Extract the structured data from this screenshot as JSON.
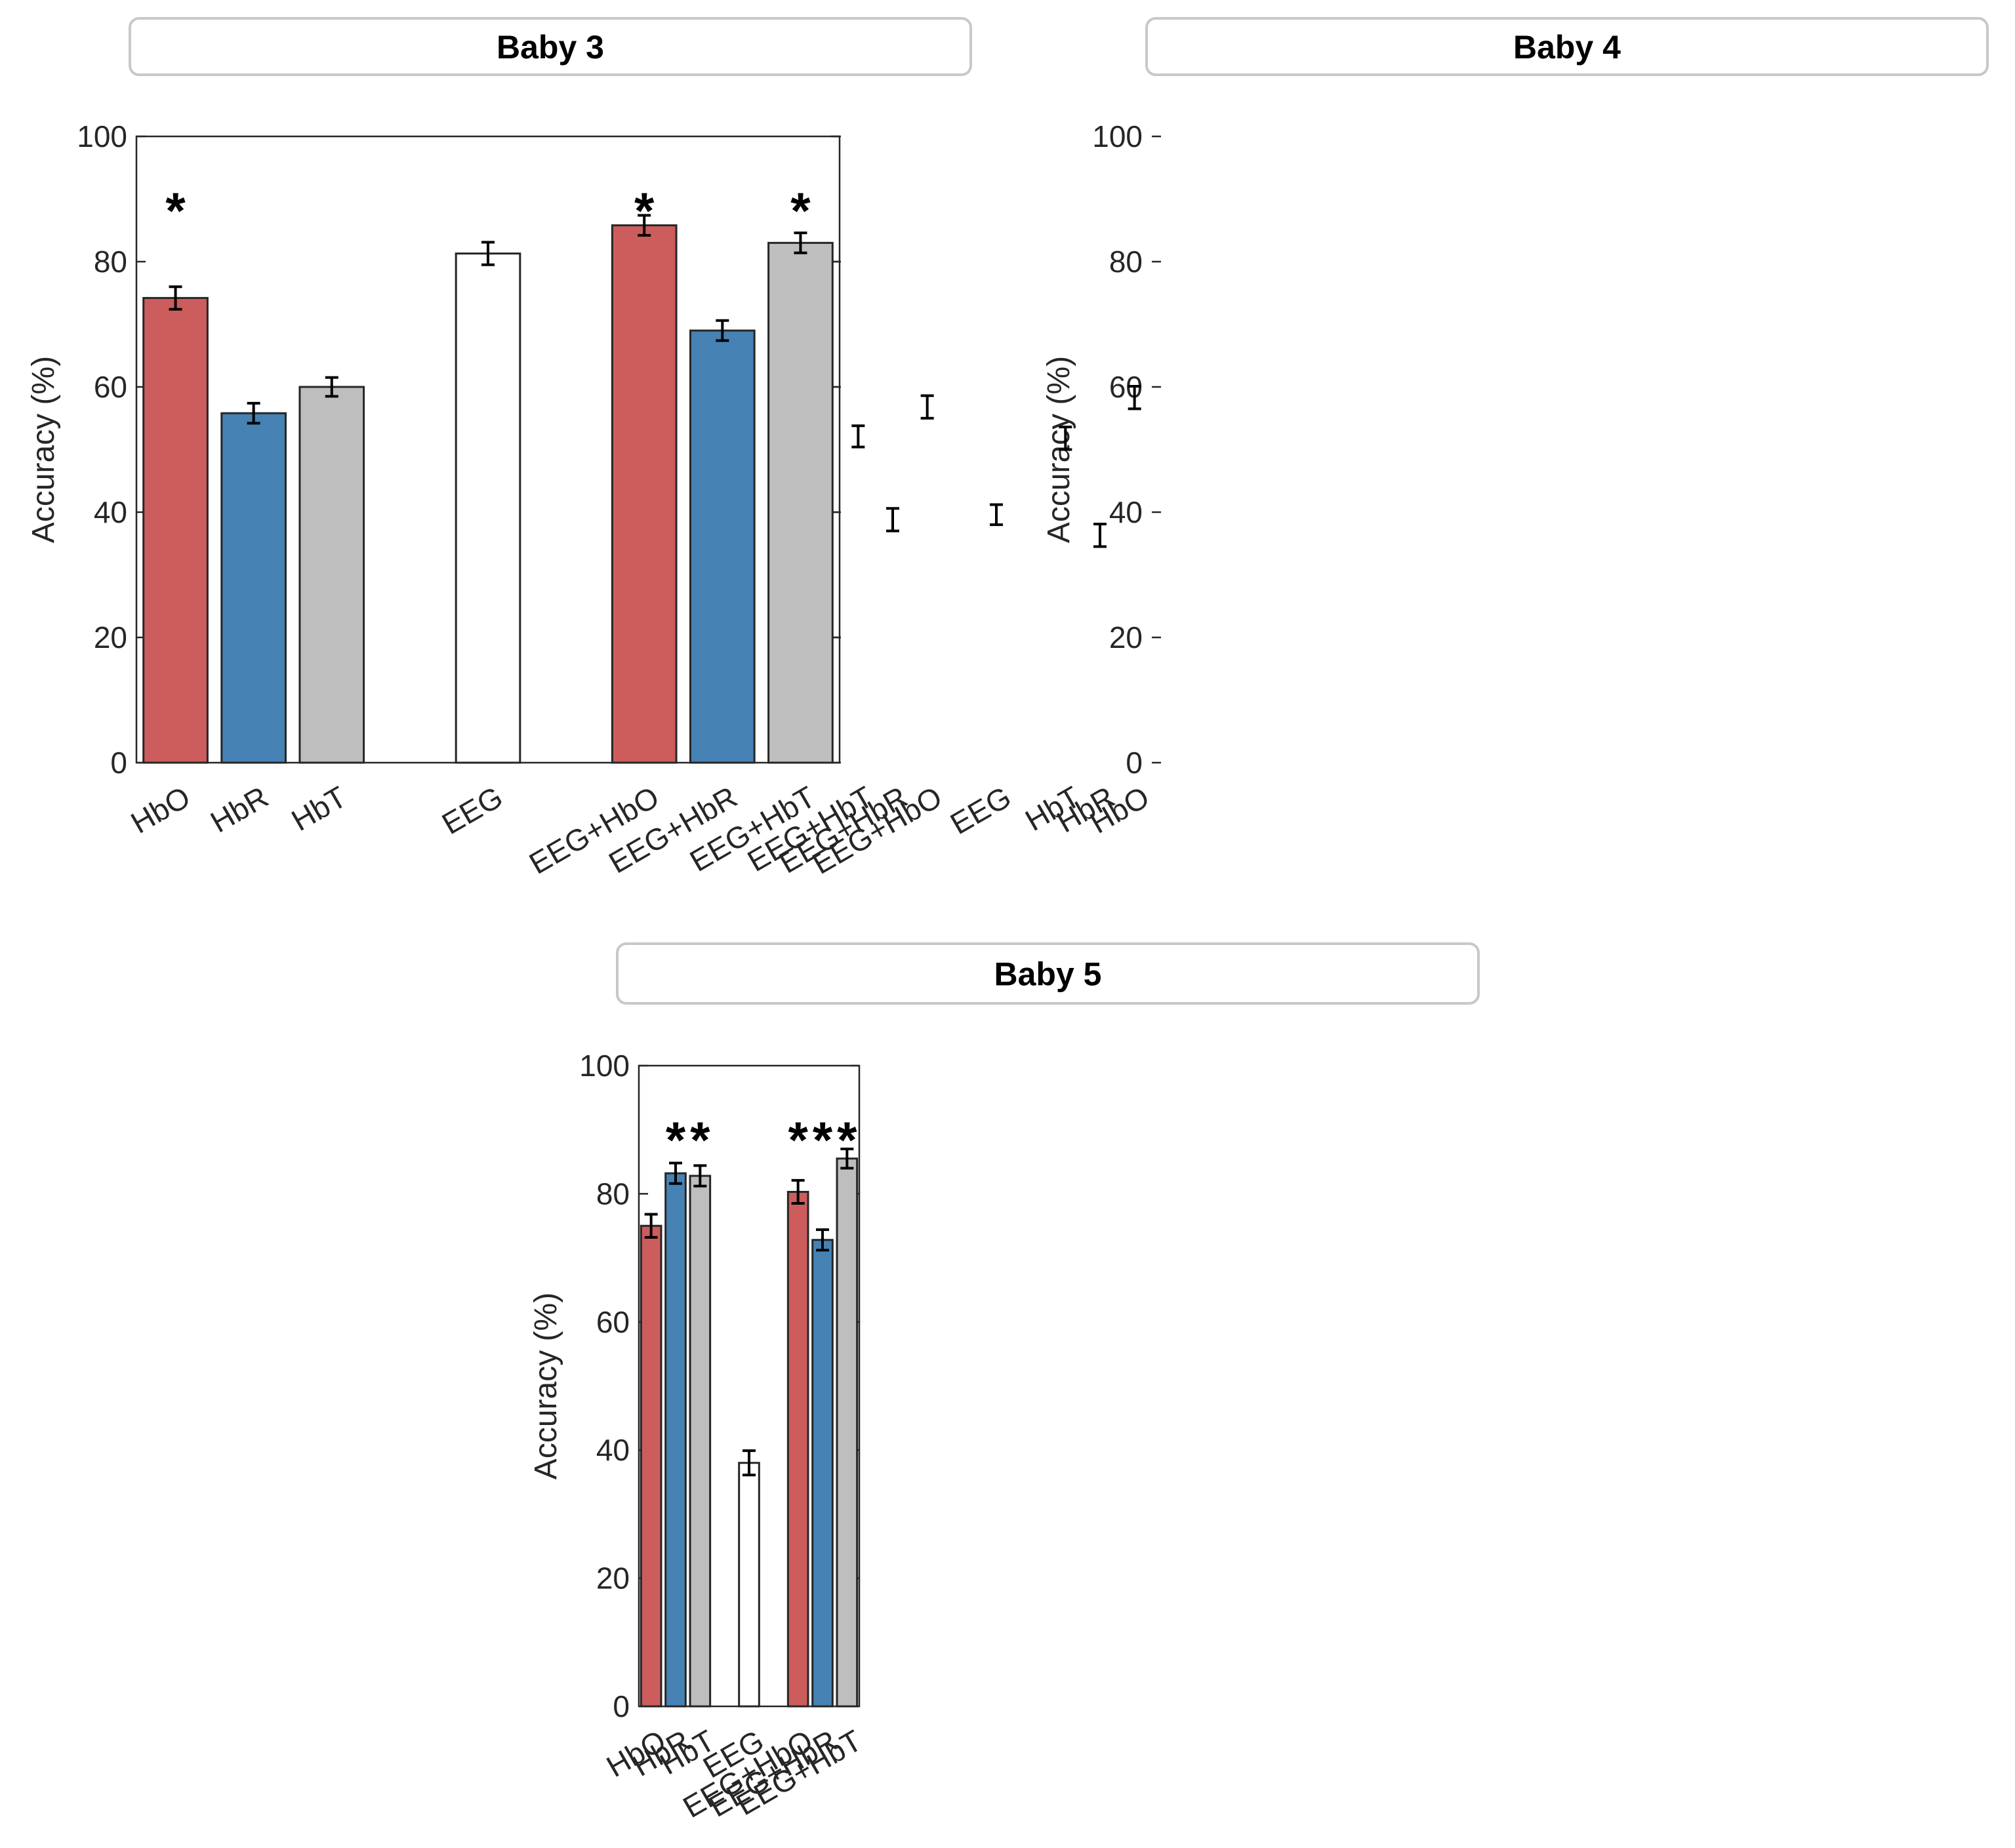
{
  "colors": {
    "HbO": "#cd5c5c",
    "HbR": "#4682b4",
    "HbT": "#bebebe",
    "EEG": "#ffffff",
    "bar_edge": "#262626",
    "axis": "#262626",
    "title_box_border": "#c8c8c8"
  },
  "chart_data": [
    {
      "type": "bar",
      "title": "Baby 3",
      "ylabel": "Accuracy (%)",
      "xlabel": "",
      "ylim": [
        0,
        100
      ],
      "yticks": [
        "0",
        "20",
        "40",
        "60",
        "80",
        "100"
      ],
      "grid": false,
      "categories": [
        "HbO",
        "HbR",
        "HbT",
        "EEG",
        "EEG+HbO",
        "EEG+HbR",
        "EEG+HbT"
      ],
      "bar_colors": [
        "HbO",
        "HbR",
        "HbT",
        "EEG",
        "HbO",
        "HbR",
        "HbT"
      ],
      "values": [
        74.2,
        55.8,
        60.0,
        81.3,
        85.8,
        69.0,
        83.0
      ],
      "errors": [
        1.8,
        1.6,
        1.5,
        1.8,
        1.6,
        1.6,
        1.6
      ],
      "significant": [
        true,
        false,
        false,
        false,
        true,
        false,
        true
      ],
      "marker": "*"
    },
    {
      "type": "bar",
      "title": "Baby 4",
      "ylabel": "Accuracy (%)",
      "xlabel": "",
      "ylim": [
        0,
        100
      ],
      "yticks": [
        "0",
        "20",
        "40",
        "60",
        "80",
        "100"
      ],
      "grid": false,
      "categories": [
        "HbO",
        "HbR",
        "HbT",
        "EEG",
        "EEG+HbO",
        "EEG+HbR",
        "EEG+HbT"
      ],
      "bar_colors": [
        "HbO",
        "HbR",
        "HbT",
        "EEG",
        "HbO",
        "HbR",
        "HbT"
      ],
      "values": [
        58.3,
        36.3,
        51.8,
        39.6,
        56.8,
        38.8,
        52.1
      ],
      "errors": [
        1.8,
        1.8,
        1.8,
        1.6,
        1.8,
        1.8,
        1.7
      ],
      "significant": [
        false,
        false,
        false,
        false,
        false,
        false,
        false
      ],
      "marker": "*"
    },
    {
      "type": "bar",
      "title": "Baby 5",
      "ylabel": "Accuracy (%)",
      "xlabel": "",
      "ylim": [
        0,
        100
      ],
      "yticks": [
        "0",
        "20",
        "40",
        "60",
        "80",
        "100"
      ],
      "grid": false,
      "categories": [
        "HbO",
        "HbR",
        "HbT",
        "EEG",
        "EEG+HbO",
        "EEG+HbR",
        "EEG+HbT"
      ],
      "bar_colors": [
        "HbO",
        "HbR",
        "HbT",
        "EEG",
        "HbO",
        "HbR",
        "HbT"
      ],
      "values": [
        75.0,
        83.2,
        82.8,
        38.0,
        80.3,
        72.8,
        85.5
      ],
      "errors": [
        1.8,
        1.6,
        1.6,
        1.9,
        1.8,
        1.6,
        1.5
      ],
      "significant": [
        false,
        true,
        true,
        false,
        true,
        true,
        true
      ],
      "marker": "*"
    }
  ]
}
